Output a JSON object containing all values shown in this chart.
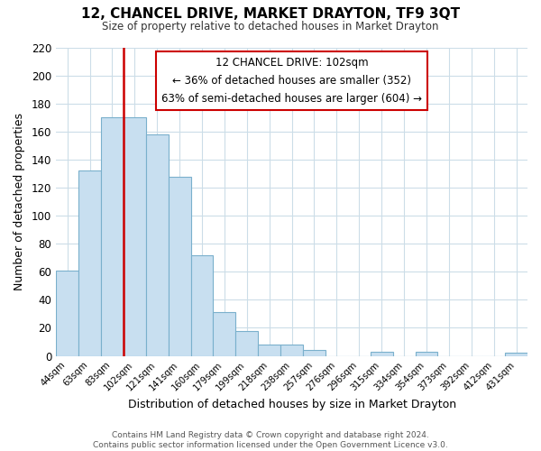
{
  "title": "12, CHANCEL DRIVE, MARKET DRAYTON, TF9 3QT",
  "subtitle": "Size of property relative to detached houses in Market Drayton",
  "xlabel": "Distribution of detached houses by size in Market Drayton",
  "ylabel": "Number of detached properties",
  "bin_labels": [
    "44sqm",
    "63sqm",
    "83sqm",
    "102sqm",
    "121sqm",
    "141sqm",
    "160sqm",
    "179sqm",
    "199sqm",
    "218sqm",
    "238sqm",
    "257sqm",
    "276sqm",
    "296sqm",
    "315sqm",
    "334sqm",
    "354sqm",
    "373sqm",
    "392sqm",
    "412sqm",
    "431sqm"
  ],
  "bar_heights": [
    61,
    132,
    170,
    170,
    158,
    128,
    72,
    31,
    18,
    8,
    8,
    4,
    0,
    0,
    3,
    0,
    3,
    0,
    0,
    0,
    2
  ],
  "bar_color": "#c8dff0",
  "bar_edge_color": "#7ab0cc",
  "vline_x": 2.5,
  "vline_color": "#cc0000",
  "annotation_box_text": "12 CHANCEL DRIVE: 102sqm\n← 36% of detached houses are smaller (352)\n63% of semi-detached houses are larger (604) →",
  "ylim": [
    0,
    220
  ],
  "yticks": [
    0,
    20,
    40,
    60,
    80,
    100,
    120,
    140,
    160,
    180,
    200,
    220
  ],
  "footer_text": "Contains HM Land Registry data © Crown copyright and database right 2024.\nContains public sector information licensed under the Open Government Licence v3.0.",
  "background_color": "#ffffff",
  "grid_color": "#ccdde8"
}
